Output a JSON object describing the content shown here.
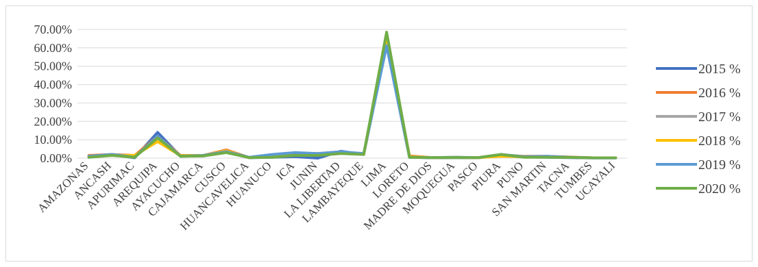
{
  "chart_data": {
    "type": "line",
    "categories": [
      "AMAZONAS",
      "ANCASH",
      "APURIMAC",
      "AREQUIPA",
      "AYACUCHO",
      "CAJAMARCA",
      "CUSCO",
      "HUANCAVELICA",
      "HUANUCO",
      "ICA",
      "JUNIN",
      "LA LIBERTAD",
      "LAMBAYEQUE",
      "LIMA",
      "LORETO",
      "MADRE DE DIOS",
      "MOQUEGUA",
      "PASCO",
      "PIURA",
      "PUNO",
      "SAN MARTIN",
      "TACNA",
      "TUMBES",
      "UCAYALI"
    ],
    "y_tick_labels": [
      "0.00%",
      "10.00%",
      "20.00%",
      "30.00%",
      "40.00%",
      "50.00%",
      "60.00%",
      "70.00%"
    ],
    "ylim": [
      0,
      70
    ],
    "grid": true,
    "legend_position": "right",
    "series": [
      {
        "name": "2015 %",
        "color": "#4472C4",
        "values": [
          0.5,
          2.0,
          0.2,
          14.0,
          1.0,
          1.2,
          3.5,
          0.2,
          0.5,
          0.8,
          0.0,
          3.8,
          2.0,
          62.0,
          0.5,
          0.2,
          0.3,
          0.2,
          1.5,
          0.6,
          0.5,
          0.3,
          0.1,
          0.1
        ]
      },
      {
        "name": "2016 %",
        "color": "#ED7D31",
        "values": [
          1.5,
          2.0,
          1.5,
          12.0,
          1.5,
          1.5,
          4.5,
          0.3,
          1.2,
          2.5,
          2.5,
          3.5,
          2.0,
          65.0,
          1.2,
          0.3,
          0.5,
          0.3,
          1.8,
          1.0,
          1.0,
          0.6,
          0.2,
          0.2
        ]
      },
      {
        "name": "2017 %",
        "color": "#A5A5A5",
        "values": [
          1.0,
          2.0,
          1.0,
          11.0,
          1.3,
          1.5,
          4.0,
          0.3,
          1.5,
          2.5,
          2.0,
          3.5,
          2.0,
          66.0,
          0.8,
          0.3,
          0.4,
          0.3,
          2.0,
          0.8,
          0.8,
          0.5,
          0.2,
          0.2
        ]
      },
      {
        "name": "2018 %",
        "color": "#FFC000",
        "values": [
          1.0,
          1.5,
          1.5,
          9.0,
          1.3,
          1.5,
          4.0,
          0.3,
          1.0,
          2.0,
          2.0,
          3.0,
          2.0,
          67.0,
          0.8,
          0.3,
          0.4,
          0.3,
          1.0,
          0.8,
          0.8,
          0.5,
          0.2,
          0.2
        ]
      },
      {
        "name": "2019 %",
        "color": "#5B9BD5",
        "values": [
          1.0,
          2.0,
          0.5,
          12.0,
          1.0,
          1.5,
          3.5,
          0.5,
          2.0,
          3.0,
          2.5,
          3.5,
          2.5,
          61.0,
          0.5,
          0.3,
          0.5,
          0.3,
          2.0,
          0.8,
          1.0,
          0.5,
          0.2,
          0.2
        ]
      },
      {
        "name": "2020 %",
        "color": "#70AD47",
        "values": [
          0.5,
          1.5,
          0.5,
          11.0,
          1.0,
          1.2,
          3.0,
          0.3,
          0.5,
          1.5,
          1.5,
          2.5,
          2.0,
          68.5,
          0.5,
          0.3,
          0.3,
          0.3,
          2.0,
          0.5,
          0.5,
          0.4,
          0.2,
          0.2
        ]
      }
    ]
  }
}
